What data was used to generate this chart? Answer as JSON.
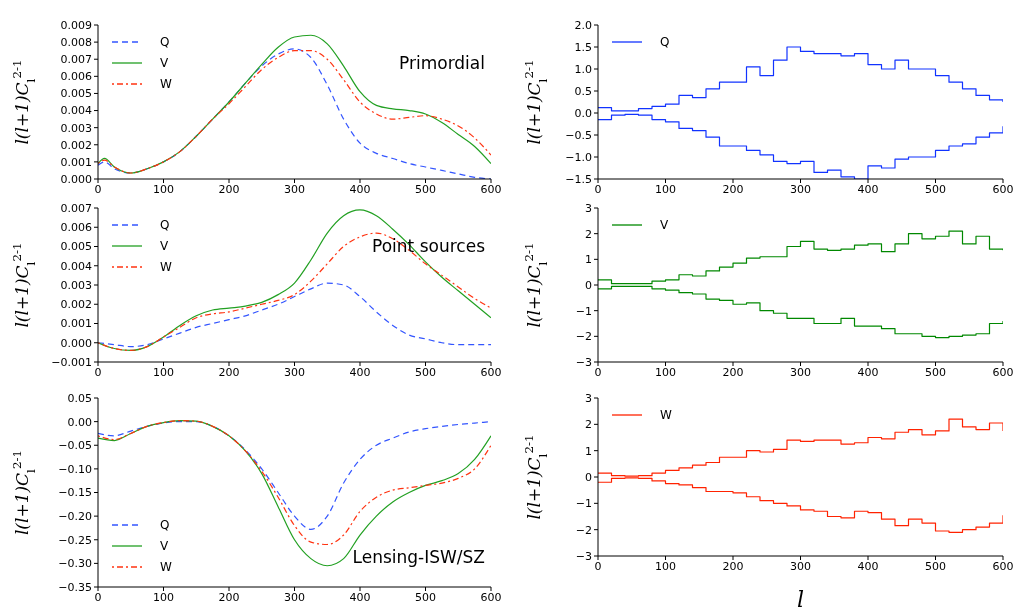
{
  "chart_data": [
    {
      "type": "line",
      "ylabel": "l(l+1)C$_{l}$$^{2-1}$",
      "annotations": [
        "Primordial"
      ],
      "legend": "top left",
      "xlim": [
        0,
        600
      ],
      "xticks": [
        0,
        100,
        200,
        300,
        400,
        500,
        600
      ],
      "ylim": [
        0,
        0.009
      ],
      "yticks": [
        {
          "value": 0,
          "label": "0.000"
        },
        {
          "value": 0.001,
          "label": "0.001"
        },
        {
          "value": 0.002,
          "label": "0.002"
        },
        {
          "value": 0.003,
          "label": "0.003"
        },
        {
          "value": 0.004,
          "label": "0.004"
        },
        {
          "value": 0.005,
          "label": "0.005"
        },
        {
          "value": 0.006,
          "label": "0.006"
        },
        {
          "value": 0.007,
          "label": "0.007"
        },
        {
          "value": 0.008,
          "label": "0.008"
        },
        {
          "value": 0.009,
          "label": "0.009"
        }
      ],
      "x": [
        0,
        10,
        25,
        50,
        75,
        100,
        125,
        150,
        175,
        200,
        225,
        250,
        275,
        300,
        325,
        350,
        375,
        400,
        425,
        450,
        475,
        500,
        525,
        550,
        575,
        600
      ],
      "series": [
        {
          "name": "Q",
          "color": "#3355ff",
          "line_style": "dashed",
          "values": [
            0.0008,
            0.001,
            0.0006,
            0.00035,
            0.0006,
            0.001,
            0.0016,
            0.0025,
            0.0035,
            0.0045,
            0.0056,
            0.0066,
            0.0073,
            0.0076,
            0.0071,
            0.0055,
            0.0035,
            0.0021,
            0.0015,
            0.0012,
            0.0009,
            0.0007,
            0.0005,
            0.0003,
            0.0001,
            0
          ]
        },
        {
          "name": "V",
          "color": "#22a022",
          "line_style": "solid",
          "values": [
            0.0009,
            0.0012,
            0.0007,
            0.00035,
            0.0006,
            0.001,
            0.0016,
            0.0025,
            0.0035,
            0.0045,
            0.0056,
            0.0067,
            0.0077,
            0.0083,
            0.0084,
            0.0079,
            0.0066,
            0.0051,
            0.0043,
            0.0041,
            0.004,
            0.0038,
            0.0033,
            0.0026,
            0.0019,
            0.0009
          ]
        },
        {
          "name": "W",
          "color": "#ff3311",
          "line_style": "dotted",
          "values": [
            0.0009,
            0.0011,
            0.0007,
            0.00035,
            0.0006,
            0.001,
            0.0016,
            0.0025,
            0.0035,
            0.0044,
            0.0054,
            0.0064,
            0.0071,
            0.0075,
            0.0075,
            0.007,
            0.0058,
            0.0045,
            0.0038,
            0.0035,
            0.0036,
            0.0037,
            0.0035,
            0.0031,
            0.0024,
            0.0014
          ]
        }
      ]
    },
    {
      "type": "step",
      "ylabel": "l(l+1)C$_{l}$$^{2-1}$",
      "legend": "top left",
      "xlim": [
        0,
        600
      ],
      "xticks": [
        0,
        100,
        200,
        300,
        400,
        500,
        600
      ],
      "ylim": [
        -1.5,
        2.0
      ],
      "yticks": [
        {
          "value": -1.5,
          "label": "−1.5"
        },
        {
          "value": -1,
          "label": "−1.0"
        },
        {
          "value": -0.5,
          "label": "−0.5"
        },
        {
          "value": 0,
          "label": "0.0"
        },
        {
          "value": 0.5,
          "label": "0.5"
        },
        {
          "value": 1,
          "label": "1.0"
        },
        {
          "value": 1.5,
          "label": "1.5"
        },
        {
          "value": 2,
          "label": "2.0"
        }
      ],
      "x": [
        0,
        20,
        40,
        60,
        80,
        100,
        120,
        140,
        160,
        180,
        200,
        220,
        240,
        260,
        280,
        300,
        320,
        340,
        360,
        380,
        400,
        420,
        440,
        460,
        480,
        500,
        520,
        540,
        560,
        580,
        600
      ],
      "series": [
        {
          "name": "Q",
          "color": "#1133ff",
          "values": [
            0.12,
            0.05,
            0.05,
            0.1,
            0.15,
            0.2,
            0.4,
            0.35,
            0.55,
            0.7,
            0.7,
            1.05,
            0.85,
            1.2,
            1.5,
            1.4,
            1.35,
            1.35,
            1.3,
            1.35,
            1.1,
            1.0,
            1.2,
            1.0,
            1.0,
            0.85,
            0.7,
            0.55,
            0.4,
            0.3,
            0.25
          ]
        },
        {
          "color": "#1133ff",
          "values": [
            -0.15,
            -0.05,
            -0.03,
            -0.05,
            -0.15,
            -0.2,
            -0.35,
            -0.4,
            -0.55,
            -0.75,
            -0.75,
            -0.85,
            -0.95,
            -1.1,
            -1.15,
            -1.1,
            -1.35,
            -1.3,
            -1.45,
            -1.5,
            -1.2,
            -1.25,
            -1.05,
            -1.0,
            -1.0,
            -0.85,
            -0.75,
            -0.7,
            -0.55,
            -0.45,
            -0.3
          ]
        }
      ]
    },
    {
      "type": "line",
      "ylabel": "l(l+1)C$_{l}$$^{2-1}$",
      "annotations": [
        "Point sources"
      ],
      "legend": "top left",
      "xlim": [
        0,
        600
      ],
      "xticks": [
        0,
        100,
        200,
        300,
        400,
        500,
        600
      ],
      "ylim": [
        -0.001,
        0.007
      ],
      "yticks": [
        {
          "value": -0.001,
          "label": "−0.001"
        },
        {
          "value": 0,
          "label": "0.000"
        },
        {
          "value": 0.001,
          "label": "0.001"
        },
        {
          "value": 0.002,
          "label": "0.002"
        },
        {
          "value": 0.003,
          "label": "0.003"
        },
        {
          "value": 0.004,
          "label": "0.004"
        },
        {
          "value": 0.005,
          "label": "0.005"
        },
        {
          "value": 0.006,
          "label": "0.006"
        },
        {
          "value": 0.007,
          "label": "0.007"
        }
      ],
      "x": [
        0,
        25,
        50,
        75,
        100,
        125,
        150,
        175,
        200,
        225,
        250,
        275,
        300,
        325,
        350,
        375,
        400,
        425,
        450,
        475,
        500,
        525,
        550,
        575,
        600
      ],
      "series": [
        {
          "name": "Q",
          "color": "#3355ff",
          "line_style": "dashed",
          "values": [
            0,
            -0.0001,
            -0.0002,
            -0.0001,
            0.0002,
            0.0005,
            0.0008,
            0.001,
            0.0012,
            0.0014,
            0.0017,
            0.002,
            0.0024,
            0.0028,
            0.0031,
            0.003,
            0.0024,
            0.0016,
            0.0009,
            0.0004,
            0.0002,
            0,
            -0.0001,
            -0.0001,
            -0.0001
          ]
        },
        {
          "name": "V",
          "color": "#22a022",
          "line_style": "solid",
          "values": [
            0,
            -0.0003,
            -0.0004,
            -0.0002,
            0.0003,
            0.0009,
            0.0014,
            0.0017,
            0.0018,
            0.0019,
            0.0021,
            0.0025,
            0.0031,
            0.0043,
            0.0057,
            0.0066,
            0.0069,
            0.0066,
            0.0059,
            0.0051,
            0.0042,
            0.0034,
            0.0027,
            0.002,
            0.0013
          ]
        },
        {
          "name": "W",
          "color": "#ff3311",
          "line_style": "dotted",
          "values": [
            0,
            -0.0003,
            -0.0004,
            -0.0002,
            0.0003,
            0.0008,
            0.0013,
            0.0015,
            0.0016,
            0.0018,
            0.002,
            0.0022,
            0.0025,
            0.0032,
            0.0041,
            0.005,
            0.0055,
            0.0057,
            0.0054,
            0.0048,
            0.0041,
            0.0035,
            0.0029,
            0.0023,
            0.0018
          ]
        }
      ]
    },
    {
      "type": "step",
      "ylabel": "l(l+1)C$_{l}$$^{2-1}$",
      "legend": "top left",
      "xlim": [
        0,
        600
      ],
      "xticks": [
        0,
        100,
        200,
        300,
        400,
        500,
        600
      ],
      "ylim": [
        -3,
        3
      ],
      "yticks": [
        {
          "value": -3,
          "label": "−3"
        },
        {
          "value": -2,
          "label": "−2"
        },
        {
          "value": -1,
          "label": "−1"
        },
        0,
        1,
        2,
        3
      ],
      "x": [
        0,
        20,
        40,
        60,
        80,
        100,
        120,
        140,
        160,
        180,
        200,
        220,
        240,
        260,
        280,
        300,
        320,
        340,
        360,
        380,
        400,
        420,
        440,
        460,
        480,
        500,
        520,
        540,
        560,
        580,
        600
      ],
      "series": [
        {
          "name": "V",
          "color": "#008800",
          "values": [
            0.2,
            0.05,
            0.05,
            0.05,
            0.15,
            0.2,
            0.4,
            0.35,
            0.55,
            0.7,
            0.85,
            1.05,
            1.1,
            1.1,
            1.5,
            1.7,
            1.4,
            1.35,
            1.4,
            1.55,
            1.6,
            1.3,
            1.6,
            2.0,
            1.8,
            1.9,
            2.1,
            1.6,
            1.9,
            1.4,
            1.35
          ]
        },
        {
          "color": "#008800",
          "values": [
            -0.15,
            -0.05,
            -0.05,
            -0.05,
            -0.15,
            -0.2,
            -0.3,
            -0.35,
            -0.55,
            -0.6,
            -0.75,
            -0.7,
            -1.0,
            -1.1,
            -1.3,
            -1.3,
            -1.5,
            -1.5,
            -1.3,
            -1.6,
            -1.6,
            -1.7,
            -1.9,
            -1.9,
            -2.0,
            -2.05,
            -2.0,
            -1.95,
            -1.9,
            -1.5,
            -1.4
          ]
        }
      ]
    },
    {
      "type": "line",
      "ylabel": "l(l+1)C$_{l}$$^{2-1}$",
      "annotations": [
        "Lensing-ISW/SZ"
      ],
      "legend": "bottom left",
      "xlim": [
        0,
        600
      ],
      "xticks": [
        0,
        100,
        200,
        300,
        400,
        500,
        600
      ],
      "ylim": [
        -0.35,
        0.05
      ],
      "yticks": [
        {
          "value": -0.35,
          "label": "−0.35"
        },
        {
          "value": -0.3,
          "label": "−0.30"
        },
        {
          "value": -0.25,
          "label": "−0.25"
        },
        {
          "value": -0.2,
          "label": "−0.20"
        },
        {
          "value": -0.15,
          "label": "−0.15"
        },
        {
          "value": -0.1,
          "label": "−0.10"
        },
        {
          "value": -0.05,
          "label": "−0.05"
        },
        {
          "value": 0,
          "label": "0.00"
        },
        {
          "value": 0.05,
          "label": "0.05"
        }
      ],
      "x": [
        0,
        25,
        50,
        75,
        100,
        125,
        150,
        175,
        200,
        225,
        250,
        275,
        300,
        325,
        350,
        375,
        400,
        425,
        450,
        475,
        500,
        525,
        550,
        575,
        600
      ],
      "series": [
        {
          "name": "Q",
          "color": "#3355ff",
          "line_style": "dashed",
          "values": [
            -0.025,
            -0.03,
            -0.02,
            -0.01,
            -0.003,
            0,
            0,
            -0.01,
            -0.03,
            -0.06,
            -0.1,
            -0.15,
            -0.2,
            -0.228,
            -0.2,
            -0.13,
            -0.08,
            -0.05,
            -0.035,
            -0.022,
            -0.015,
            -0.01,
            -0.006,
            -0.003,
            0
          ]
        },
        {
          "name": "V",
          "color": "#22a022",
          "line_style": "solid",
          "values": [
            -0.035,
            -0.04,
            -0.025,
            -0.01,
            -0.002,
            0.002,
            0.001,
            -0.01,
            -0.03,
            -0.062,
            -0.11,
            -0.18,
            -0.25,
            -0.29,
            -0.305,
            -0.29,
            -0.24,
            -0.2,
            -0.17,
            -0.15,
            -0.135,
            -0.125,
            -0.11,
            -0.08,
            -0.03
          ]
        },
        {
          "name": "W",
          "color": "#ff3311",
          "line_style": "dotted",
          "values": [
            -0.03,
            -0.038,
            -0.025,
            -0.01,
            -0.002,
            0.002,
            0.001,
            -0.01,
            -0.03,
            -0.062,
            -0.105,
            -0.16,
            -0.22,
            -0.255,
            -0.26,
            -0.24,
            -0.19,
            -0.16,
            -0.145,
            -0.14,
            -0.135,
            -0.13,
            -0.12,
            -0.1,
            -0.05
          ]
        }
      ]
    },
    {
      "type": "step",
      "ylabel": "l(l+1)C$_{l}$$^{2-1}$",
      "xlabel": "l",
      "legend": "top left",
      "xlim": [
        0,
        600
      ],
      "xticks": [
        0,
        100,
        200,
        300,
        400,
        500,
        600
      ],
      "ylim": [
        -3,
        3
      ],
      "yticks": [
        {
          "value": -3,
          "label": "−3"
        },
        {
          "value": -2,
          "label": "−2"
        },
        {
          "value": -1,
          "label": "−1"
        },
        0,
        1,
        2,
        3
      ],
      "x": [
        0,
        20,
        40,
        60,
        80,
        100,
        120,
        140,
        160,
        180,
        200,
        220,
        240,
        260,
        280,
        300,
        320,
        340,
        360,
        380,
        400,
        420,
        440,
        460,
        480,
        500,
        520,
        540,
        560,
        580,
        600
      ],
      "series": [
        {
          "name": "W",
          "color": "#ff2200",
          "values": [
            0.15,
            0.05,
            0.03,
            0.05,
            0.15,
            0.25,
            0.35,
            0.45,
            0.55,
            0.75,
            0.75,
            1.0,
            0.95,
            1.05,
            1.4,
            1.35,
            1.4,
            1.4,
            1.25,
            1.3,
            1.5,
            1.45,
            1.7,
            1.8,
            1.6,
            1.75,
            2.2,
            1.9,
            1.8,
            2.05,
            1.75
          ]
        },
        {
          "color": "#ff2200",
          "values": [
            -0.2,
            -0.05,
            -0.03,
            -0.05,
            -0.15,
            -0.25,
            -0.3,
            -0.4,
            -0.55,
            -0.55,
            -0.6,
            -0.75,
            -0.9,
            -1.0,
            -1.1,
            -1.25,
            -1.3,
            -1.5,
            -1.55,
            -1.3,
            -1.35,
            -1.6,
            -1.85,
            -1.6,
            -1.75,
            -2.05,
            -2.1,
            -2.0,
            -1.9,
            -1.75,
            -1.45
          ]
        }
      ]
    }
  ]
}
